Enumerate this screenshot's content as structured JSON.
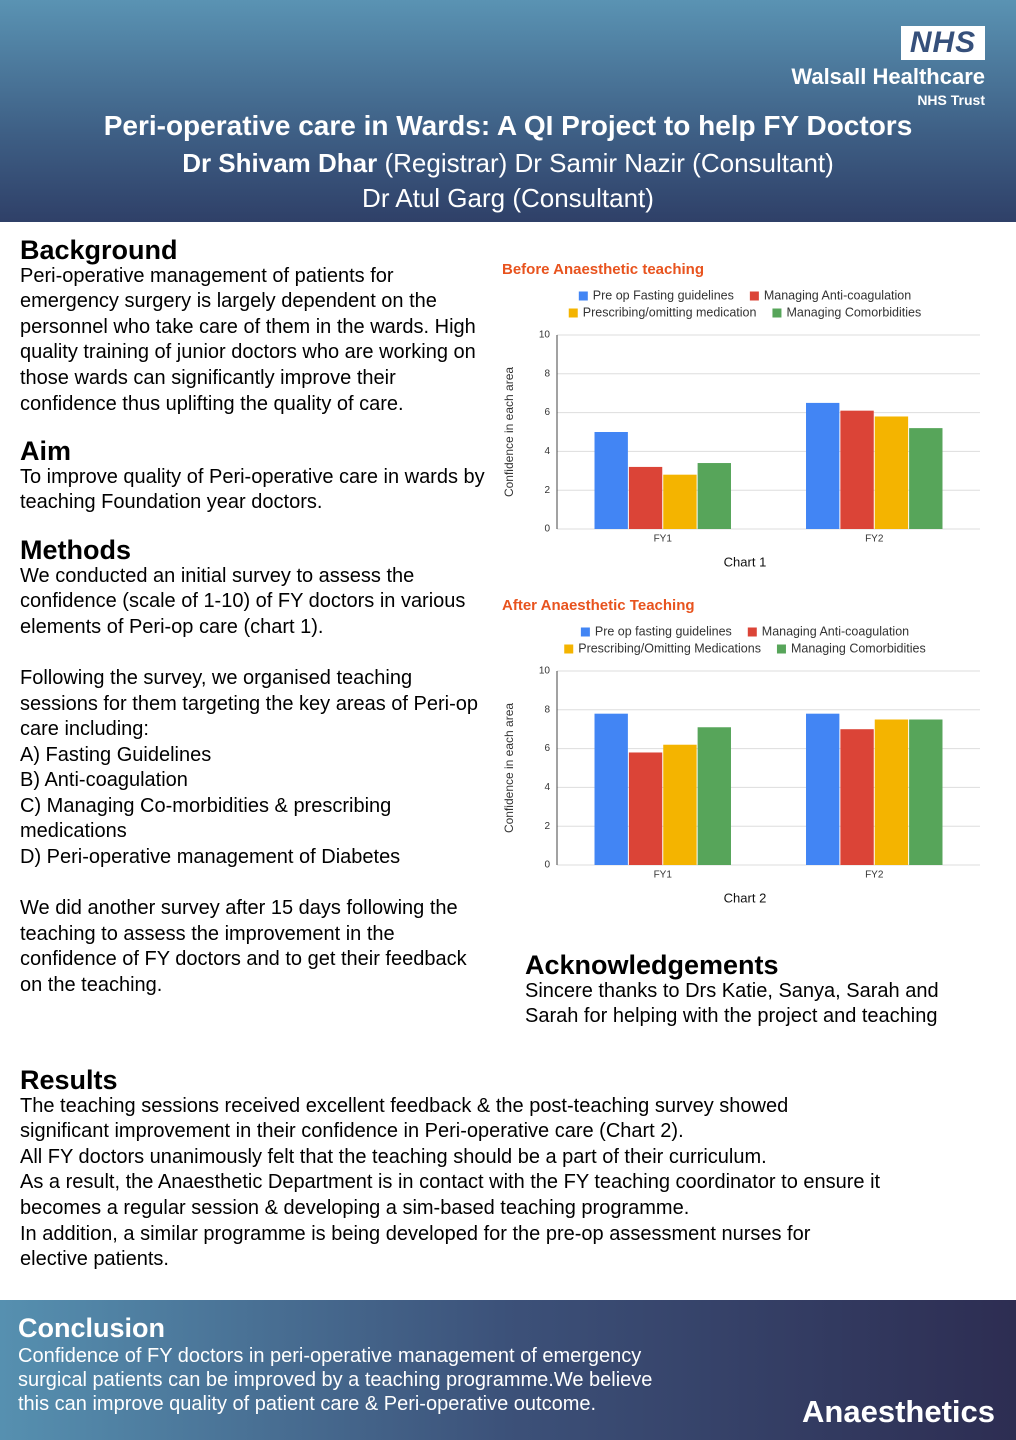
{
  "header": {
    "logo": "NHS",
    "organisation": "Walsall Healthcare",
    "trust": "NHS Trust",
    "title": "Peri-operative care in Wards: A QI Project to help FY Doctors",
    "authors": [
      "Dr Shivam Dhar",
      "(Registrar) Dr Samir Nazir (Consultant)",
      "Dr Atul Garg (Consultant)"
    ]
  },
  "background": {
    "heading": "Background",
    "text": "Peri-operative management of patients for emergency surgery is largely dependent on the personnel who take care of them in the wards. High quality training of junior doctors who are working on those wards can significantly improve their confidence thus uplifting the quality of care."
  },
  "aim": {
    "heading": "Aim",
    "text": "To improve quality of Peri-operative care in wards by teaching Foundation year doctors."
  },
  "methods": {
    "heading": "Methods",
    "paragraphs": [
      "We conducted an initial survey to assess the confidence (scale of 1-10) of FY doctors in various elements of Peri-op care (chart 1).",
      "Following the survey, we organised teaching sessions for them targeting the key areas of Peri-op care including:",
      "A) Fasting Guidelines",
      "B) Anti-coagulation",
      "C) Managing Co-morbidities & prescribing medications",
      "D) Peri-operative management of Diabetes",
      "We did another survey after 15 days following the teaching to assess the improvement in the confidence of FY doctors and to get their feedback on the teaching."
    ]
  },
  "acknowledgements": {
    "heading": "Acknowledgements",
    "text": "Sincere thanks to Drs Katie, Sanya, Sarah and Sarah for helping with the project and teaching"
  },
  "results": {
    "heading": "Results",
    "lines": [
      "The teaching sessions received excellent feedback & the post-teaching survey showed",
      "significant improvement in their confidence in Peri-operative care (Chart 2).",
      "All FY doctors unanimously felt that the teaching should be a part of their curriculum.",
      "As a result, the Anaesthetic Department is in contact with the FY teaching coordinator to ensure it",
      "becomes a regular session & developing a sim-based teaching programme.",
      "In addition, a similar programme is being developed for the pre-op assessment nurses for",
      "elective patients."
    ]
  },
  "conclusion": {
    "heading": "Conclusion",
    "lines": [
      "Confidence of FY doctors in peri-operative management of emergency",
      "surgical patients can be improved by a teaching programme.We believe",
      "this can improve quality of patient care & Peri-operative outcome."
    ]
  },
  "department": "Anaesthetics",
  "chart_data": [
    {
      "type": "bar",
      "title": "Before Anaesthetic teaching",
      "categories": [
        "FY1",
        "FY2"
      ],
      "series": [
        {
          "name": "Pre op Fasting guidelines",
          "color": "#4285f4",
          "values": [
            5.0,
            6.5
          ]
        },
        {
          "name": "Managing Anti-coagulation",
          "color": "#db4437",
          "values": [
            3.2,
            6.1
          ]
        },
        {
          "name": "Prescribing/omitting medication",
          "color": "#f4b400",
          "values": [
            2.8,
            5.8
          ]
        },
        {
          "name": "Managing Comorbidities",
          "color": "#57a55a",
          "values": [
            3.4,
            5.2
          ]
        }
      ],
      "ylim": [
        0,
        10
      ],
      "yticks": [
        0,
        2,
        4,
        6,
        8,
        10
      ],
      "y_label": "Confidence in each area",
      "caption": "Chart 1",
      "grid": true
    },
    {
      "type": "bar",
      "title": "After Anaesthetic Teaching",
      "categories": [
        "FY1",
        "FY2"
      ],
      "series": [
        {
          "name": "Pre op fasting guidelines",
          "color": "#4285f4",
          "values": [
            7.8,
            7.8
          ]
        },
        {
          "name": "Managing Anti-coagulation",
          "color": "#db4437",
          "values": [
            5.8,
            7.0
          ]
        },
        {
          "name": "Prescribing/Omitting Medications",
          "color": "#f4b400",
          "values": [
            6.2,
            7.5
          ]
        },
        {
          "name": "Managing Comorbidities",
          "color": "#57a55a",
          "values": [
            7.1,
            7.5
          ]
        }
      ],
      "ylim": [
        0,
        10
      ],
      "yticks": [
        0,
        2,
        4,
        6,
        8,
        10
      ],
      "y_label": "Confidence in each area",
      "caption": "Chart 2",
      "grid": true
    }
  ]
}
